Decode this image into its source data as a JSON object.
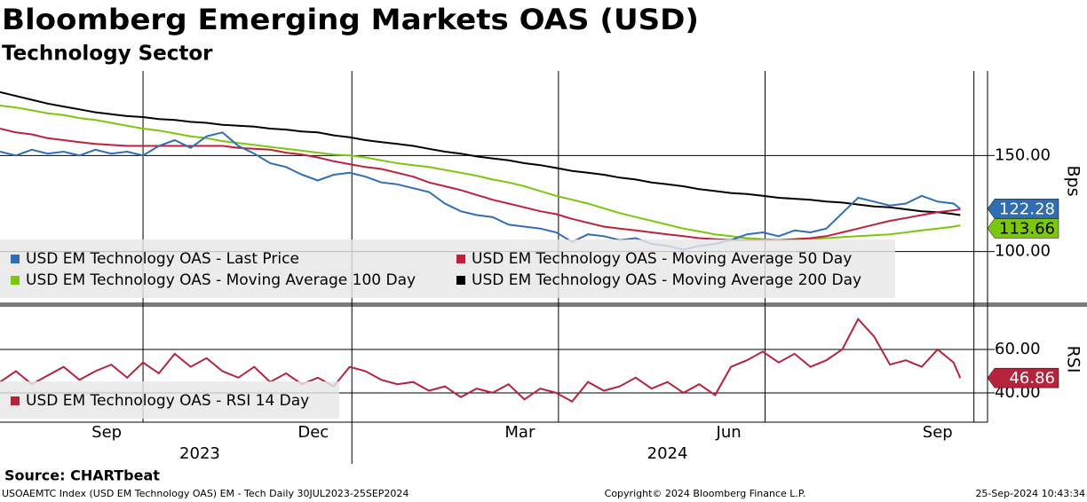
{
  "chart_data": [
    {
      "type": "line",
      "title": "Bloomberg Emerging Markets OAS (USD)",
      "subtitle": "Technology Sector",
      "y_label": "Bps",
      "x": [
        "2023-07-30",
        "2023-08-06",
        "2023-08-13",
        "2023-08-20",
        "2023-08-27",
        "2023-09-03",
        "2023-09-10",
        "2023-09-17",
        "2023-09-24",
        "2023-10-01",
        "2023-10-08",
        "2023-10-15",
        "2023-10-22",
        "2023-10-29",
        "2023-11-05",
        "2023-11-12",
        "2023-11-19",
        "2023-11-26",
        "2023-12-03",
        "2023-12-10",
        "2023-12-17",
        "2023-12-24",
        "2023-12-31",
        "2024-01-07",
        "2024-01-14",
        "2024-01-21",
        "2024-01-28",
        "2024-02-04",
        "2024-02-11",
        "2024-02-18",
        "2024-02-25",
        "2024-03-03",
        "2024-03-10",
        "2024-03-17",
        "2024-03-24",
        "2024-03-31",
        "2024-04-07",
        "2024-04-14",
        "2024-04-21",
        "2024-04-28",
        "2024-05-05",
        "2024-05-12",
        "2024-05-19",
        "2024-05-26",
        "2024-06-02",
        "2024-06-09",
        "2024-06-16",
        "2024-06-23",
        "2024-06-30",
        "2024-07-07",
        "2024-07-14",
        "2024-07-21",
        "2024-07-28",
        "2024-08-04",
        "2024-08-11",
        "2024-08-18",
        "2024-08-25",
        "2024-09-01",
        "2024-09-08",
        "2024-09-15",
        "2024-09-22",
        "2024-09-25"
      ],
      "series": [
        {
          "name": "USD EM Technology OAS - Moving Average 200 Day",
          "color": "#000000",
          "values": [
            183,
            181,
            179,
            177,
            175.5,
            174,
            172.5,
            171.5,
            170.5,
            170,
            169,
            168.5,
            167.5,
            167,
            166,
            165.5,
            165,
            164,
            163.5,
            162.5,
            162,
            160.5,
            159.5,
            158,
            157,
            156,
            155,
            153.5,
            152,
            151,
            149.5,
            148.5,
            147.5,
            146,
            145,
            143.5,
            142,
            141,
            140,
            138.5,
            137.5,
            136,
            135,
            134,
            132.5,
            131.5,
            130.5,
            130,
            129,
            128,
            127.5,
            127,
            126,
            125.5,
            124.5,
            123.5,
            123,
            122,
            121,
            120.5,
            119.5,
            119
          ]
        },
        {
          "name": "USD EM Technology OAS - Moving Average 100 Day",
          "color": "#7ac70c",
          "show_last": true,
          "values": [
            176,
            175,
            173.5,
            172,
            171,
            169.5,
            168.5,
            167,
            165.5,
            164,
            163,
            161.5,
            160,
            159,
            157.5,
            156.5,
            155.5,
            154.5,
            153.5,
            152.5,
            151.5,
            150.5,
            150,
            149,
            147.5,
            146,
            145,
            144,
            142.5,
            141,
            139.5,
            137.5,
            136,
            134,
            131.5,
            129,
            127,
            125,
            122.5,
            120,
            118,
            116,
            114,
            112,
            110.5,
            109,
            108,
            107,
            106.5,
            106,
            106,
            106.5,
            107,
            107.5,
            108,
            108.5,
            109,
            110,
            111,
            112,
            113,
            113.66
          ]
        },
        {
          "name": "USD EM Technology OAS - Moving Average 50 Day",
          "color": "#c0203a",
          "values": [
            164,
            162,
            161,
            159,
            158,
            157,
            156,
            155.5,
            155,
            155,
            155,
            155,
            155,
            155,
            155,
            154,
            153.5,
            153,
            151.5,
            150.5,
            149,
            147,
            145.5,
            144,
            143,
            141,
            139,
            136,
            134,
            132,
            129.5,
            127,
            125,
            123,
            121,
            119.5,
            117,
            115,
            113,
            112,
            111,
            110,
            109,
            108,
            107,
            106.5,
            106,
            106,
            106,
            106,
            106.5,
            107,
            108,
            110,
            112,
            114,
            116,
            117.5,
            119,
            120.5,
            121.5,
            122
          ]
        },
        {
          "name": "USD EM Technology OAS - Last Price",
          "color": "#2f6db5",
          "show_last": true,
          "values": [
            152,
            150,
            153,
            151,
            152,
            150,
            153,
            151,
            152,
            150,
            155,
            158,
            154,
            160,
            162,
            155,
            151,
            146,
            144,
            140,
            137,
            140,
            141,
            139,
            136,
            135,
            133,
            131,
            125,
            121,
            119,
            118,
            114,
            113,
            112,
            110,
            105,
            109,
            108,
            106,
            107,
            104,
            103,
            101,
            103,
            104,
            106,
            109,
            110,
            108,
            111,
            110,
            112,
            120,
            128,
            126,
            124,
            125,
            129,
            126,
            125,
            122.28
          ]
        }
      ],
      "legend_order": [
        3,
        2,
        1,
        0
      ],
      "ylim": [
        74,
        194
      ],
      "yticks": [
        {
          "value": 100,
          "label": "100.00"
        },
        {
          "value": 150,
          "label": "150.00"
        }
      ],
      "grid": true,
      "legend": "bottom-left"
    },
    {
      "type": "line",
      "y_label": "RSI",
      "x": [
        "2023-07-30",
        "2023-08-06",
        "2023-08-13",
        "2023-08-20",
        "2023-08-27",
        "2023-09-03",
        "2023-09-10",
        "2023-09-17",
        "2023-09-24",
        "2023-10-01",
        "2023-10-08",
        "2023-10-15",
        "2023-10-22",
        "2023-10-29",
        "2023-11-05",
        "2023-11-12",
        "2023-11-19",
        "2023-11-26",
        "2023-12-03",
        "2023-12-10",
        "2023-12-17",
        "2023-12-24",
        "2023-12-31",
        "2024-01-07",
        "2024-01-14",
        "2024-01-21",
        "2024-01-28",
        "2024-02-04",
        "2024-02-11",
        "2024-02-18",
        "2024-02-25",
        "2024-03-03",
        "2024-03-10",
        "2024-03-17",
        "2024-03-24",
        "2024-03-31",
        "2024-04-07",
        "2024-04-14",
        "2024-04-21",
        "2024-04-28",
        "2024-05-05",
        "2024-05-12",
        "2024-05-19",
        "2024-05-26",
        "2024-06-02",
        "2024-06-09",
        "2024-06-16",
        "2024-06-23",
        "2024-06-30",
        "2024-07-07",
        "2024-07-14",
        "2024-07-21",
        "2024-07-28",
        "2024-08-04",
        "2024-08-11",
        "2024-08-18",
        "2024-08-25",
        "2024-09-01",
        "2024-09-08",
        "2024-09-15",
        "2024-09-22",
        "2024-09-25"
      ],
      "series": [
        {
          "name": "USD EM Technology OAS - RSI 14 Day",
          "color": "#b5233c",
          "show_last": true,
          "values": [
            45,
            50,
            44,
            48,
            52,
            46,
            50,
            53,
            47,
            54,
            49,
            58,
            52,
            56,
            50,
            47,
            52,
            45,
            49,
            44,
            47,
            43,
            52,
            50,
            46,
            44,
            45,
            41,
            43,
            38,
            42,
            40,
            44,
            37,
            42,
            40,
            36,
            45,
            41,
            43,
            47,
            42,
            45,
            40,
            44,
            39,
            52,
            55,
            59,
            54,
            58,
            52,
            55,
            60,
            74,
            66,
            53,
            55,
            52,
            60,
            54,
            46.86
          ]
        }
      ],
      "ylim": [
        26.5,
        79.6
      ],
      "yticks": [
        {
          "value": 40,
          "label": "40.00"
        },
        {
          "value": 60,
          "label": "60.00"
        }
      ],
      "grid": true,
      "legend": "bottom-left",
      "xlim": [
        "2023-07-30",
        "2024-10-07"
      ],
      "xticks": [
        {
          "value": "2023-09-15",
          "label": "Sep"
        },
        {
          "value": "2023-12-15",
          "label": "Dec"
        },
        {
          "value": "2024-03-15",
          "label": "Mar"
        },
        {
          "value": "2024-06-15",
          "label": "Jun"
        },
        {
          "value": "2024-09-15",
          "label": "Sep"
        }
      ],
      "xgrid": [
        "2023-10-01",
        "2024-01-01",
        "2024-04-01",
        "2024-07-01",
        "2024-10-01"
      ],
      "year_labels": [
        {
          "value": "2023-10-26",
          "label": "2023"
        },
        {
          "value": "2024-05-19",
          "label": "2024"
        }
      ],
      "year_breaks": [
        "2024-01-01"
      ]
    }
  ],
  "footer": {
    "source": "Source: CHARTbeat",
    "left": "USOAEMTC Index (USD EM Technology OAS) EM - Tech  Daily 30JUL2023-25SEP2024",
    "center": "Copyright© 2024 Bloomberg Finance L.P.",
    "right": "25-Sep-2024 10:43:34"
  }
}
